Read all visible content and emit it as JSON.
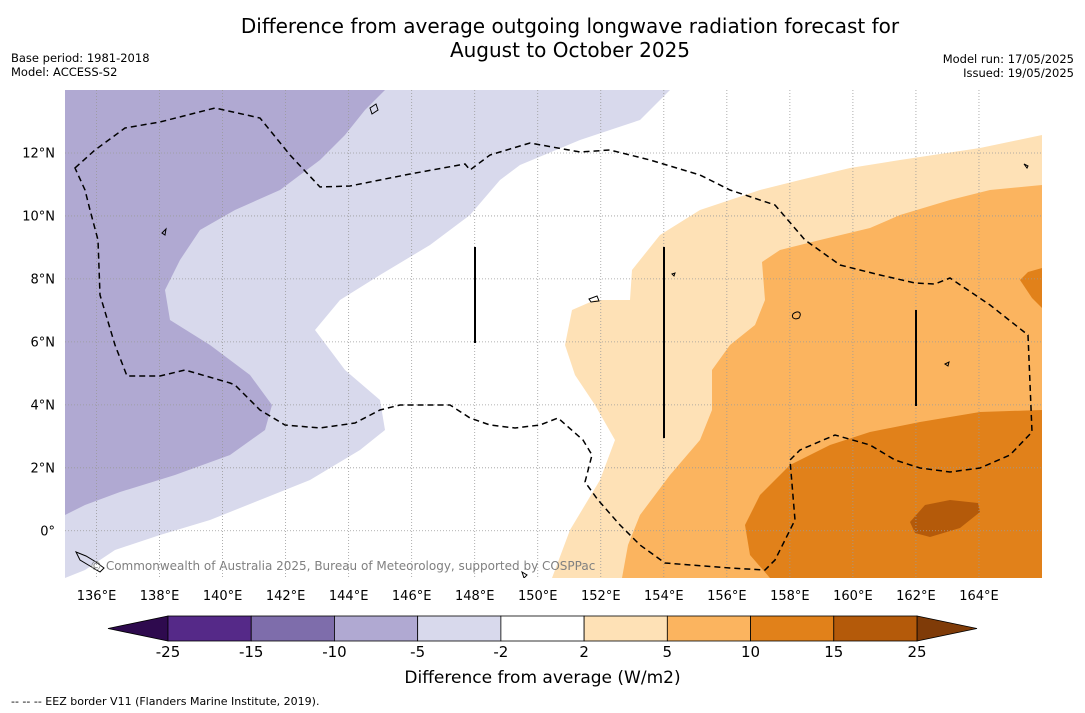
{
  "header": {
    "title_line1": "Difference from average outgoing longwave radiation forecast for",
    "title_line2": "August to October 2025",
    "base_period": "Base period: 1981-2018",
    "model": "Model: ACCESS-S2",
    "model_run": "Model run: 17/05/2025",
    "issued": "Issued: 19/05/2025"
  },
  "map": {
    "lon_range": [
      135,
      166
    ],
    "lat_range": [
      -1.5,
      14
    ],
    "lon_ticks": [
      "136°E",
      "138°E",
      "140°E",
      "142°E",
      "144°E",
      "146°E",
      "148°E",
      "150°E",
      "152°E",
      "154°E",
      "156°E",
      "158°E",
      "160°E",
      "162°E",
      "164°E"
    ],
    "lat_ticks": [
      "12°N",
      "10°N",
      "8°N",
      "6°N",
      "4°N",
      "2°N",
      "0°"
    ],
    "copyright": "© Commonwealth of Australia 2025, Bureau of Meteorology, supported by COSPPac"
  },
  "colorbar": {
    "labels": [
      "-25",
      "-15",
      "-10",
      "-5",
      "-2",
      "2",
      "5",
      "10",
      "15",
      "25"
    ],
    "colors": [
      "#552988",
      "#7e6dab",
      "#b0a9d2",
      "#d8d9ec",
      "#ffffff",
      "#fee1b6",
      "#fbb45f",
      "#e1811a",
      "#b45a0a"
    ],
    "under_color": "#2e0a4e",
    "over_color": "#7f3b08",
    "title": "Difference from average (W/m2)"
  },
  "footnote": "--  --  -- EEZ border V11 (Flanders Marine Institute, 2019)."
}
